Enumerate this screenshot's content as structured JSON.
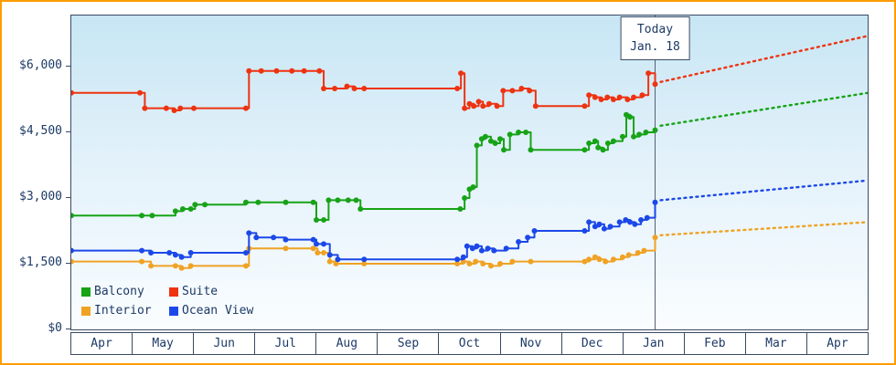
{
  "colors": {
    "frame_border": "#ff9d00",
    "plot_border": "#3a4a63",
    "text": "#1d3a66",
    "today_line": "#55606f",
    "grad_top": "#c7e6f4",
    "grad_bottom": "#fafdff"
  },
  "chart_data": {
    "type": "line",
    "title": "",
    "xlabel": "",
    "ylabel": "",
    "style": "stepped price history with point markers and dotted forecast after today",
    "y_range": [
      0,
      7166
    ],
    "x_axis": {
      "months": [
        "Apr",
        "May",
        "Jun",
        "Jul",
        "Aug",
        "Sep",
        "Oct",
        "Nov",
        "Dec",
        "Jan",
        "Feb",
        "Mar",
        "Apr"
      ]
    },
    "y_axis": {
      "ticks": [
        {
          "label": "$6,000",
          "value": 6000
        },
        {
          "label": "$4,500",
          "value": 4500
        },
        {
          "label": "$3,000",
          "value": 3000
        },
        {
          "label": "$1,500",
          "value": 1500
        },
        {
          "label": "$0",
          "value": 0
        }
      ]
    },
    "today_marker": {
      "line1": "Today",
      "line2": "Jan. 18",
      "month_position": 9.53
    },
    "legend_order": [
      "balcony",
      "suite",
      "interior",
      "ocean_view"
    ],
    "series": [
      {
        "id": "interior",
        "name": "Interior",
        "color": "#f0a224",
        "points": [
          [
            0,
            1550
          ],
          [
            1.15,
            1550
          ],
          [
            1.3,
            1450
          ],
          [
            1.7,
            1450
          ],
          [
            1.8,
            1400
          ],
          [
            1.95,
            1450
          ],
          [
            2.85,
            1450
          ],
          [
            2.9,
            1850
          ],
          [
            3.5,
            1850
          ],
          [
            3.95,
            1850
          ],
          [
            4.02,
            1750
          ],
          [
            4.12,
            1750
          ],
          [
            4.22,
            1550
          ],
          [
            4.32,
            1500
          ],
          [
            4.78,
            1500
          ],
          [
            6.3,
            1500
          ],
          [
            6.4,
            1550
          ],
          [
            6.5,
            1500
          ],
          [
            6.6,
            1550
          ],
          [
            6.72,
            1500
          ],
          [
            6.85,
            1450
          ],
          [
            7.0,
            1500
          ],
          [
            7.2,
            1550
          ],
          [
            7.5,
            1550
          ],
          [
            8.38,
            1550
          ],
          [
            8.45,
            1600
          ],
          [
            8.55,
            1650
          ],
          [
            8.62,
            1600
          ],
          [
            8.72,
            1550
          ],
          [
            8.85,
            1600
          ],
          [
            9.0,
            1650
          ],
          [
            9.1,
            1700
          ],
          [
            9.25,
            1750
          ],
          [
            9.35,
            1800
          ],
          [
            9.53,
            2100
          ]
        ],
        "projection": {
          "start": [
            9.62,
            2150
          ],
          "end": [
            13,
            2450
          ]
        }
      },
      {
        "id": "ocean_view",
        "name": "Ocean View",
        "color": "#1c48e8",
        "points": [
          [
            0,
            1800
          ],
          [
            1.15,
            1800
          ],
          [
            1.3,
            1750
          ],
          [
            1.6,
            1750
          ],
          [
            1.7,
            1700
          ],
          [
            1.8,
            1650
          ],
          [
            1.95,
            1750
          ],
          [
            2.85,
            1750
          ],
          [
            2.9,
            2200
          ],
          [
            3.02,
            2100
          ],
          [
            3.3,
            2100
          ],
          [
            3.5,
            2050
          ],
          [
            3.95,
            2050
          ],
          [
            4.0,
            1950
          ],
          [
            4.12,
            1950
          ],
          [
            4.22,
            1700
          ],
          [
            4.35,
            1600
          ],
          [
            4.78,
            1600
          ],
          [
            6.3,
            1600
          ],
          [
            6.4,
            1650
          ],
          [
            6.46,
            1900
          ],
          [
            6.55,
            1850
          ],
          [
            6.62,
            1900
          ],
          [
            6.7,
            1800
          ],
          [
            6.8,
            1850
          ],
          [
            6.9,
            1800
          ],
          [
            7.1,
            1850
          ],
          [
            7.3,
            2000
          ],
          [
            7.45,
            2100
          ],
          [
            7.56,
            2250
          ],
          [
            8.38,
            2250
          ],
          [
            8.45,
            2450
          ],
          [
            8.55,
            2350
          ],
          [
            8.62,
            2400
          ],
          [
            8.7,
            2300
          ],
          [
            8.8,
            2350
          ],
          [
            8.95,
            2450
          ],
          [
            9.05,
            2500
          ],
          [
            9.12,
            2450
          ],
          [
            9.2,
            2400
          ],
          [
            9.3,
            2500
          ],
          [
            9.4,
            2550
          ],
          [
            9.53,
            2900
          ]
        ],
        "projection": {
          "start": [
            9.62,
            2950
          ],
          "end": [
            13,
            3400
          ]
        }
      },
      {
        "id": "balcony",
        "name": "Balcony",
        "color": "#17a317",
        "points": [
          [
            0,
            2600
          ],
          [
            1.15,
            2600
          ],
          [
            1.32,
            2600
          ],
          [
            1.7,
            2700
          ],
          [
            1.82,
            2750
          ],
          [
            1.95,
            2750
          ],
          [
            2.02,
            2850
          ],
          [
            2.18,
            2850
          ],
          [
            2.85,
            2900
          ],
          [
            3.05,
            2900
          ],
          [
            3.5,
            2900
          ],
          [
            3.95,
            2900
          ],
          [
            4.0,
            2500
          ],
          [
            4.12,
            2500
          ],
          [
            4.2,
            2950
          ],
          [
            4.35,
            2950
          ],
          [
            4.52,
            2950
          ],
          [
            4.65,
            2950
          ],
          [
            4.72,
            2750
          ],
          [
            6.35,
            2750
          ],
          [
            6.42,
            3000
          ],
          [
            6.5,
            3200
          ],
          [
            6.56,
            3250
          ],
          [
            6.62,
            4200
          ],
          [
            6.7,
            4350
          ],
          [
            6.76,
            4400
          ],
          [
            6.85,
            4300
          ],
          [
            6.92,
            4250
          ],
          [
            7.0,
            4350
          ],
          [
            7.06,
            4100
          ],
          [
            7.16,
            4450
          ],
          [
            7.3,
            4500
          ],
          [
            7.42,
            4500
          ],
          [
            7.5,
            4100
          ],
          [
            8.38,
            4100
          ],
          [
            8.45,
            4250
          ],
          [
            8.55,
            4300
          ],
          [
            8.6,
            4150
          ],
          [
            8.68,
            4100
          ],
          [
            8.76,
            4250
          ],
          [
            8.85,
            4300
          ],
          [
            9.0,
            4400
          ],
          [
            9.06,
            4900
          ],
          [
            9.12,
            4850
          ],
          [
            9.18,
            4400
          ],
          [
            9.27,
            4450
          ],
          [
            9.38,
            4500
          ],
          [
            9.53,
            4550
          ]
        ],
        "projection": {
          "start": [
            9.62,
            4650
          ],
          "end": [
            13,
            5400
          ]
        }
      },
      {
        "id": "suite",
        "name": "Suite",
        "color": "#ee3311",
        "points": [
          [
            0,
            5400
          ],
          [
            1.12,
            5400
          ],
          [
            1.2,
            5050
          ],
          [
            1.55,
            5050
          ],
          [
            1.68,
            5000
          ],
          [
            1.78,
            5050
          ],
          [
            2.0,
            5050
          ],
          [
            2.85,
            5050
          ],
          [
            2.9,
            5900
          ],
          [
            3.1,
            5900
          ],
          [
            3.35,
            5900
          ],
          [
            3.6,
            5900
          ],
          [
            3.8,
            5900
          ],
          [
            4.05,
            5900
          ],
          [
            4.12,
            5500
          ],
          [
            4.3,
            5500
          ],
          [
            4.5,
            5550
          ],
          [
            4.62,
            5500
          ],
          [
            4.78,
            5500
          ],
          [
            6.3,
            5500
          ],
          [
            6.36,
            5850
          ],
          [
            6.42,
            5050
          ],
          [
            6.5,
            5150
          ],
          [
            6.57,
            5100
          ],
          [
            6.65,
            5200
          ],
          [
            6.72,
            5100
          ],
          [
            6.82,
            5150
          ],
          [
            6.95,
            5100
          ],
          [
            7.05,
            5450
          ],
          [
            7.2,
            5450
          ],
          [
            7.35,
            5500
          ],
          [
            7.48,
            5450
          ],
          [
            7.58,
            5100
          ],
          [
            8.38,
            5100
          ],
          [
            8.45,
            5350
          ],
          [
            8.55,
            5300
          ],
          [
            8.65,
            5250
          ],
          [
            8.75,
            5300
          ],
          [
            8.85,
            5250
          ],
          [
            8.95,
            5300
          ],
          [
            9.08,
            5250
          ],
          [
            9.18,
            5300
          ],
          [
            9.32,
            5350
          ],
          [
            9.42,
            5850
          ],
          [
            9.53,
            5600
          ]
        ],
        "projection": {
          "start": [
            9.62,
            5650
          ],
          "end": [
            13,
            6700
          ]
        }
      }
    ]
  }
}
